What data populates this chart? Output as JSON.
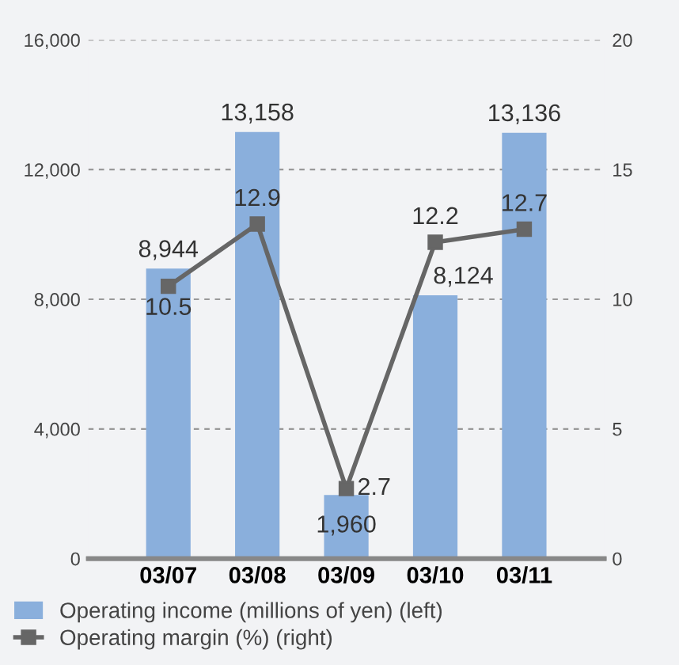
{
  "chart_data": {
    "type": "bar",
    "categories": [
      "03/07",
      "03/08",
      "03/09",
      "03/10",
      "03/11"
    ],
    "series": [
      {
        "name": "Operating income (millions of yen) (left)",
        "color": "#8aafdc",
        "values": [
          8944,
          13158,
          1960,
          8124,
          13136
        ],
        "value_labels": [
          "8,944",
          "13,158",
          "1,960",
          "8,124",
          "13,136"
        ]
      },
      {
        "name": "Operating margin (%) (right)",
        "type": "line",
        "axis": "y2",
        "color": "#666666",
        "values": [
          10.5,
          12.9,
          2.7,
          12.2,
          12.7
        ]
      }
    ],
    "ylim": [
      0,
      16000
    ],
    "yticks": [
      {
        "value": 0,
        "label": "0"
      },
      {
        "value": 4000,
        "label": "4,000"
      },
      {
        "value": 8000,
        "label": "8,000"
      },
      {
        "value": 12000,
        "label": "12,000"
      },
      {
        "value": 16000,
        "label": "16,000"
      }
    ],
    "y2lim": [
      0,
      20
    ],
    "y2ticks": [
      0,
      5,
      10,
      15,
      20
    ],
    "data_labels": true,
    "grid": "y",
    "legend": "bottom",
    "marker": "square",
    "line_style": "solid"
  }
}
